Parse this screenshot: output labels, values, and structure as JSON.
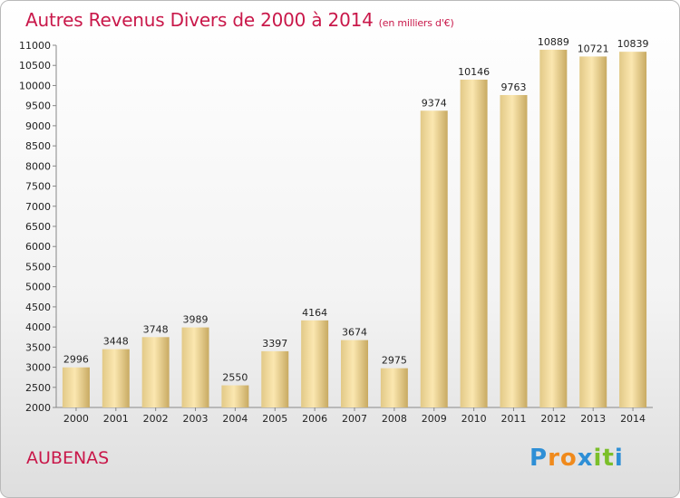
{
  "header": {
    "title": "Autres Revenus Divers de 2000 à 2014",
    "subtitle": "(en milliers d'€)"
  },
  "footer": {
    "city": "AUBENAS",
    "logo": "Proxiti"
  },
  "colors": {
    "title": "#c9184a",
    "bar_light": "#fbe7b0",
    "bar_dark": "#c8aa62"
  },
  "chart_data": {
    "type": "bar",
    "title": "Autres Revenus Divers de 2000 à 2014",
    "subtitle": "(en milliers d'€)",
    "categories": [
      "2000",
      "2001",
      "2002",
      "2003",
      "2004",
      "2005",
      "2006",
      "2007",
      "2008",
      "2009",
      "2010",
      "2011",
      "2012",
      "2013",
      "2014"
    ],
    "values": [
      2996,
      3448,
      3748,
      3989,
      2550,
      3397,
      4164,
      3674,
      2975,
      9374,
      10146,
      9763,
      10889,
      10721,
      10839
    ],
    "ylim": [
      2000,
      11000
    ],
    "yticks": [
      2000,
      2500,
      3000,
      3500,
      4000,
      4500,
      5000,
      5500,
      6000,
      6500,
      7000,
      7500,
      8000,
      8500,
      9000,
      9500,
      10000,
      10500,
      11000
    ],
    "grid": false,
    "legend": "none"
  }
}
